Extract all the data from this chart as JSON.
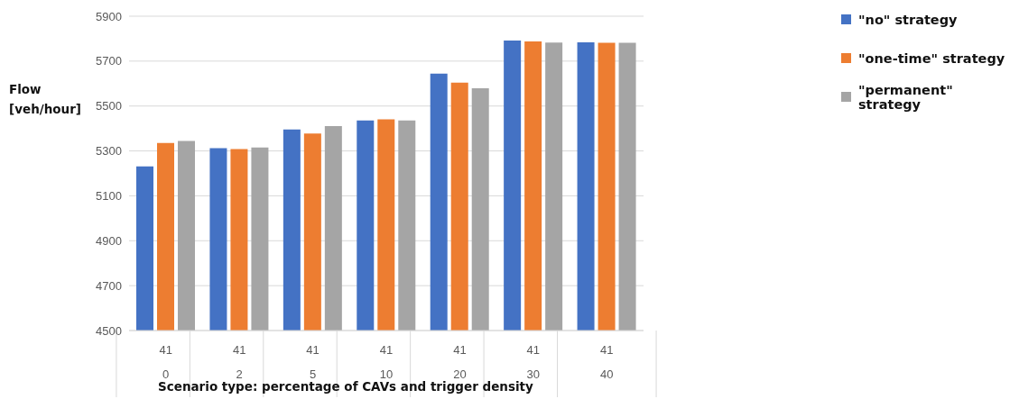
{
  "chart_data": {
    "type": "bar",
    "xlabel": "Scenario type: percentage of CAVs and trigger density",
    "ylabel": "Flow [veh/hour]",
    "categories": [
      "0",
      "2",
      "5",
      "10",
      "20",
      "30",
      "40"
    ],
    "series": [
      {
        "name": "\"no\" strategy",
        "color": "#4472c4",
        "values": [
          5231,
          5312,
          5396,
          5436,
          5644,
          5792,
          5784
        ]
      },
      {
        "name": "\"one-time\" strategy",
        "color": "#ed7d31",
        "values": [
          5335,
          5308,
          5378,
          5441,
          5604,
          5788,
          5782
        ]
      },
      {
        "name": "\"permanent\" strategy",
        "color": "#a5a5a5",
        "values": [
          5344,
          5315,
          5411,
          5436,
          5579,
          5783,
          5782
        ]
      }
    ],
    "annotations": [
      "41",
      "41",
      "41",
      "41",
      "41",
      "41",
      "41"
    ],
    "ylim": [
      4500,
      5900
    ],
    "yticks": [
      4500,
      4700,
      4900,
      5100,
      5300,
      5500,
      5700,
      5900
    ],
    "grid": "y",
    "legend": "top right"
  }
}
